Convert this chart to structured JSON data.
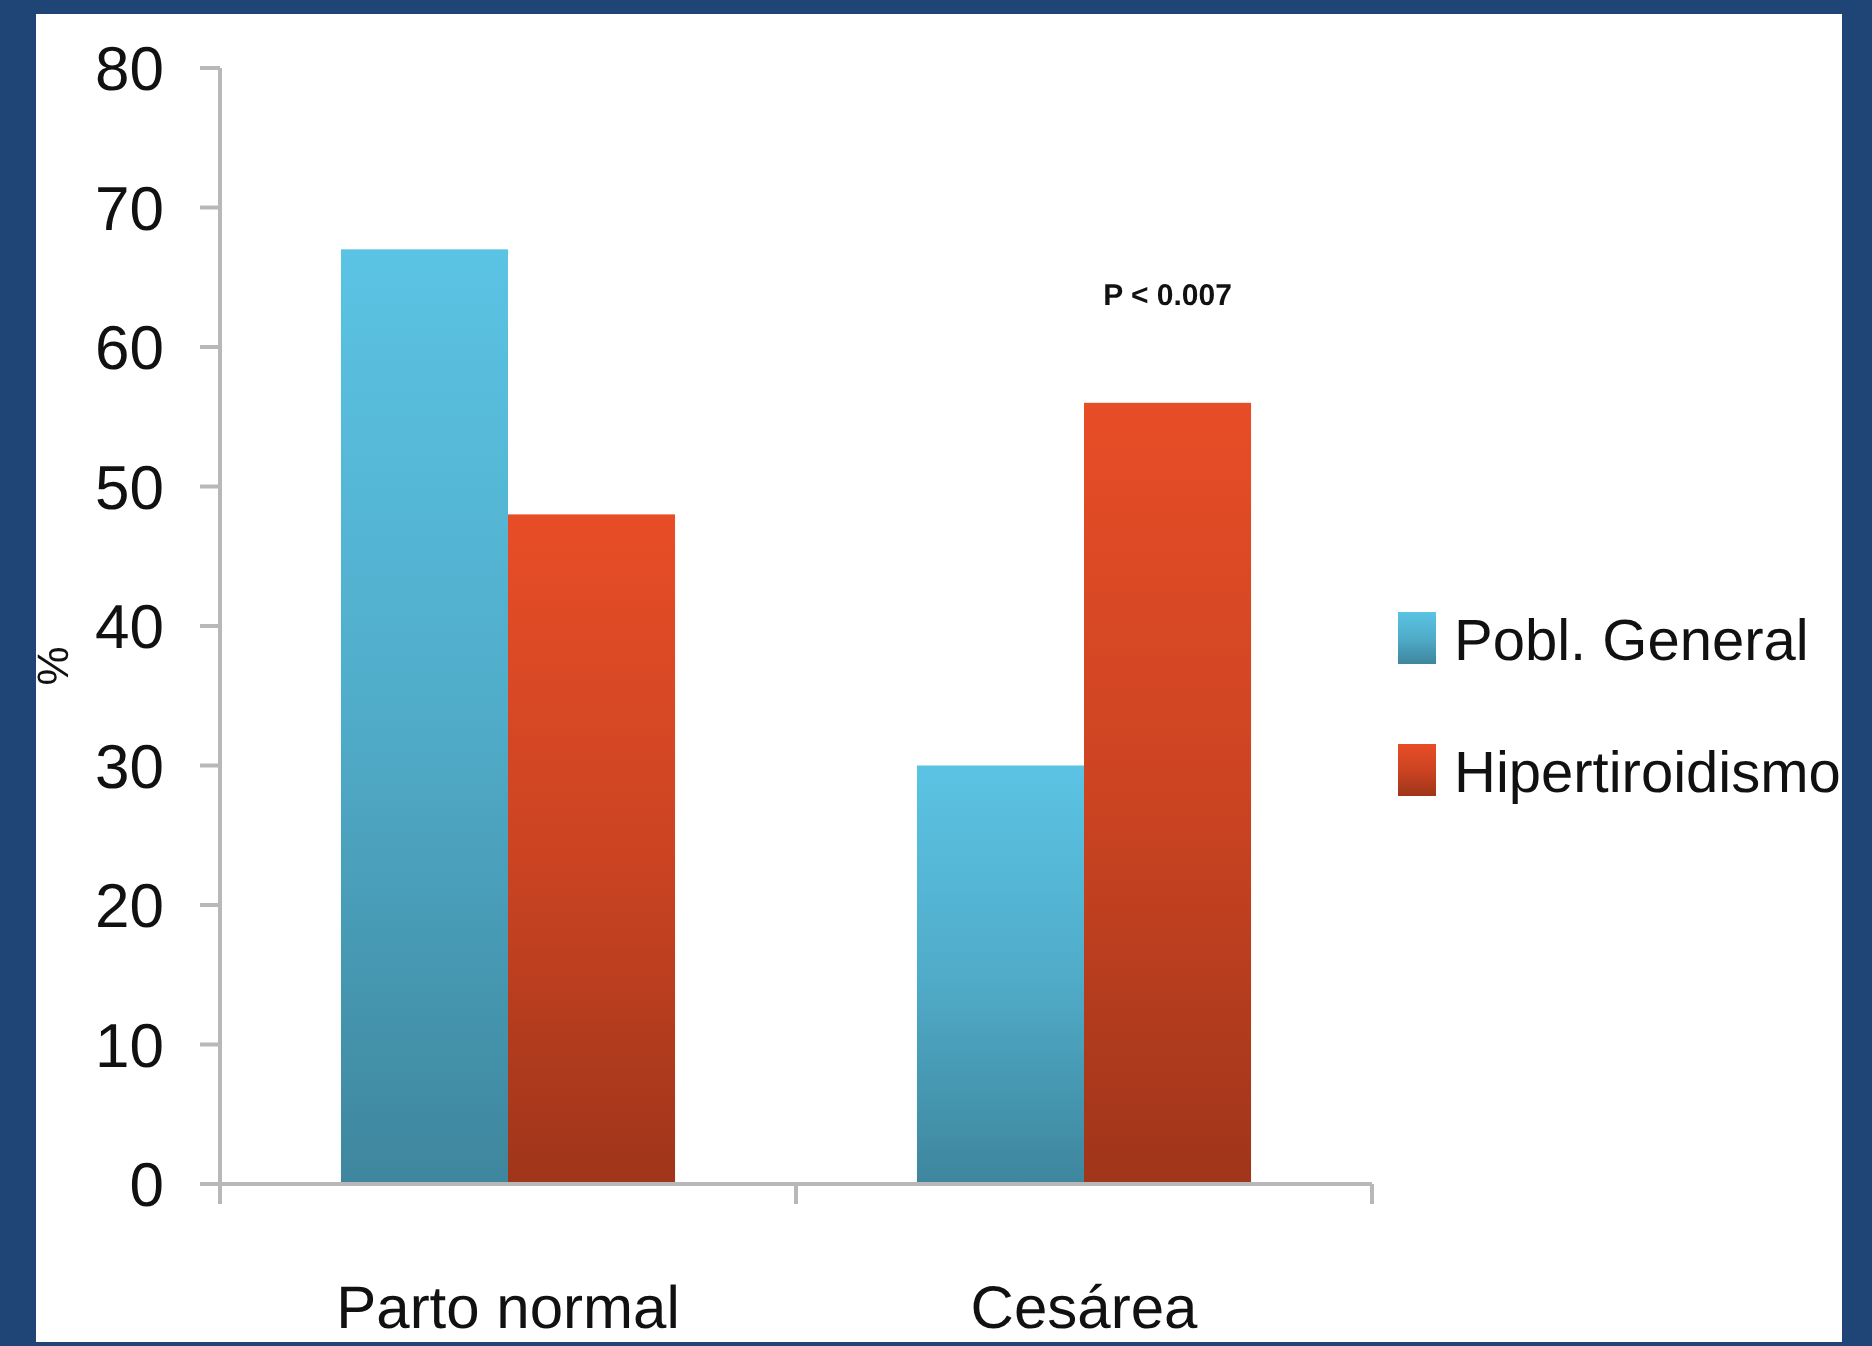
{
  "chart_data": {
    "type": "bar",
    "ylabel": "%",
    "categories": [
      "Parto normal",
      "Cesárea"
    ],
    "series": [
      {
        "name": "Pobl. General",
        "color": "#50acc9",
        "values": [
          67,
          30
        ]
      },
      {
        "name": "Hipertiroidismo",
        "color": "#cc4422",
        "values": [
          48,
          56
        ]
      }
    ],
    "ylim": [
      0,
      80
    ],
    "yticks": [
      0,
      10,
      20,
      30,
      40,
      50,
      60,
      70,
      80
    ],
    "legend": "right",
    "annotations": [
      "P < 0.007"
    ]
  }
}
